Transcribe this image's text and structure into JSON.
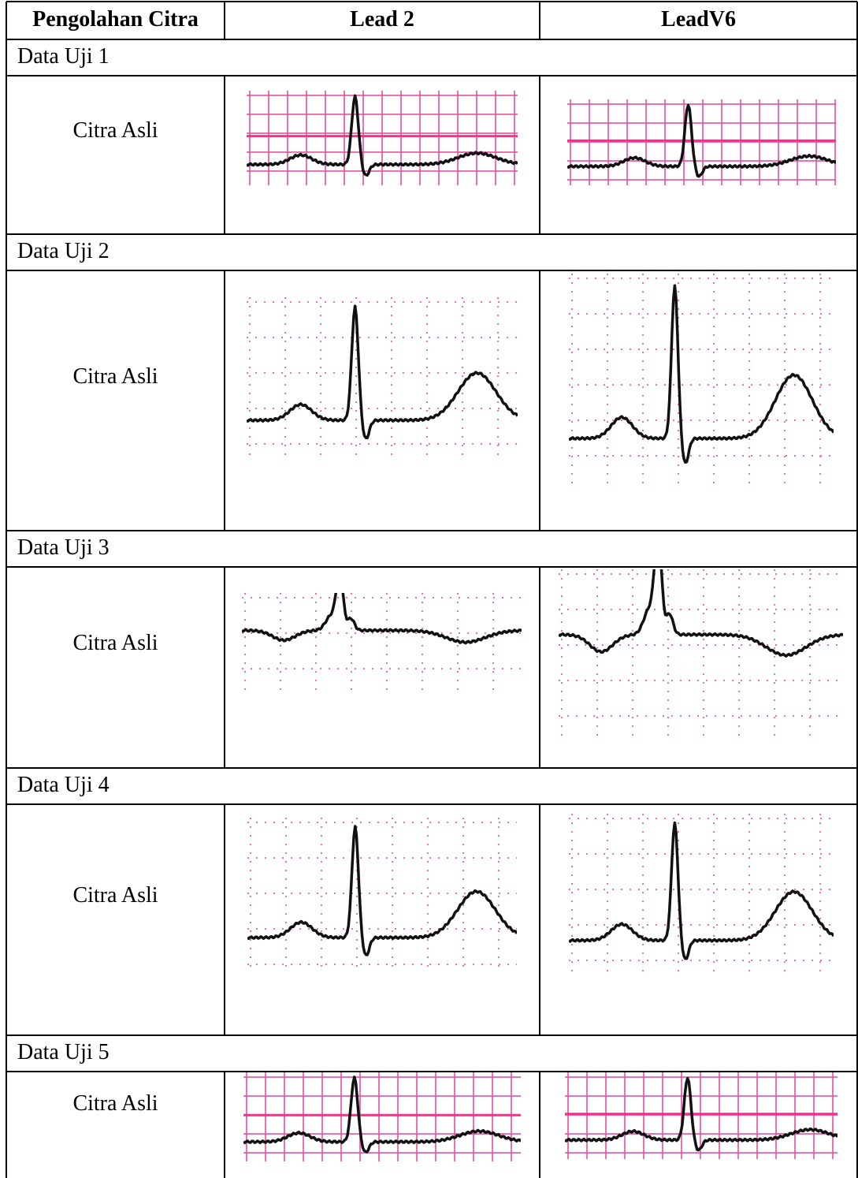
{
  "header": [
    "Pengolahan Citra",
    "Lead 2",
    "LeadV6"
  ],
  "sections": [
    {
      "label": "Data Uji 1",
      "row_label": "Citra Asli"
    },
    {
      "label": "Data Uji 2",
      "row_label": "Citra Asli"
    },
    {
      "label": "Data Uji 3",
      "row_label": "Citra Asli"
    },
    {
      "label": "Data Uji 4",
      "row_label": "Citra Asli"
    },
    {
      "label": "Data Uji 5",
      "row_label": "Citra Asli"
    }
  ]
}
